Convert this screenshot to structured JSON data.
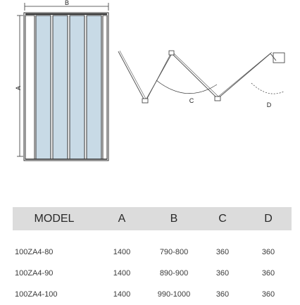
{
  "diagram": {
    "dimension_labels": {
      "a": "A",
      "b": "B",
      "c": "C",
      "d": "D"
    },
    "panel_count": 4,
    "panel_color": "#c8dae6",
    "frame_color": "#333333"
  },
  "table": {
    "header_bg": "#dcdcdc",
    "columns": [
      "MODEL",
      "A",
      "B",
      "C",
      "D"
    ],
    "rows": [
      [
        "100ZA4-80",
        "1400",
        "790-800",
        "360",
        "360"
      ],
      [
        "100ZA4-90",
        "1400",
        "890-900",
        "360",
        "360"
      ],
      [
        "100ZA4-100",
        "1400",
        "990-1000",
        "360",
        "360"
      ]
    ]
  }
}
